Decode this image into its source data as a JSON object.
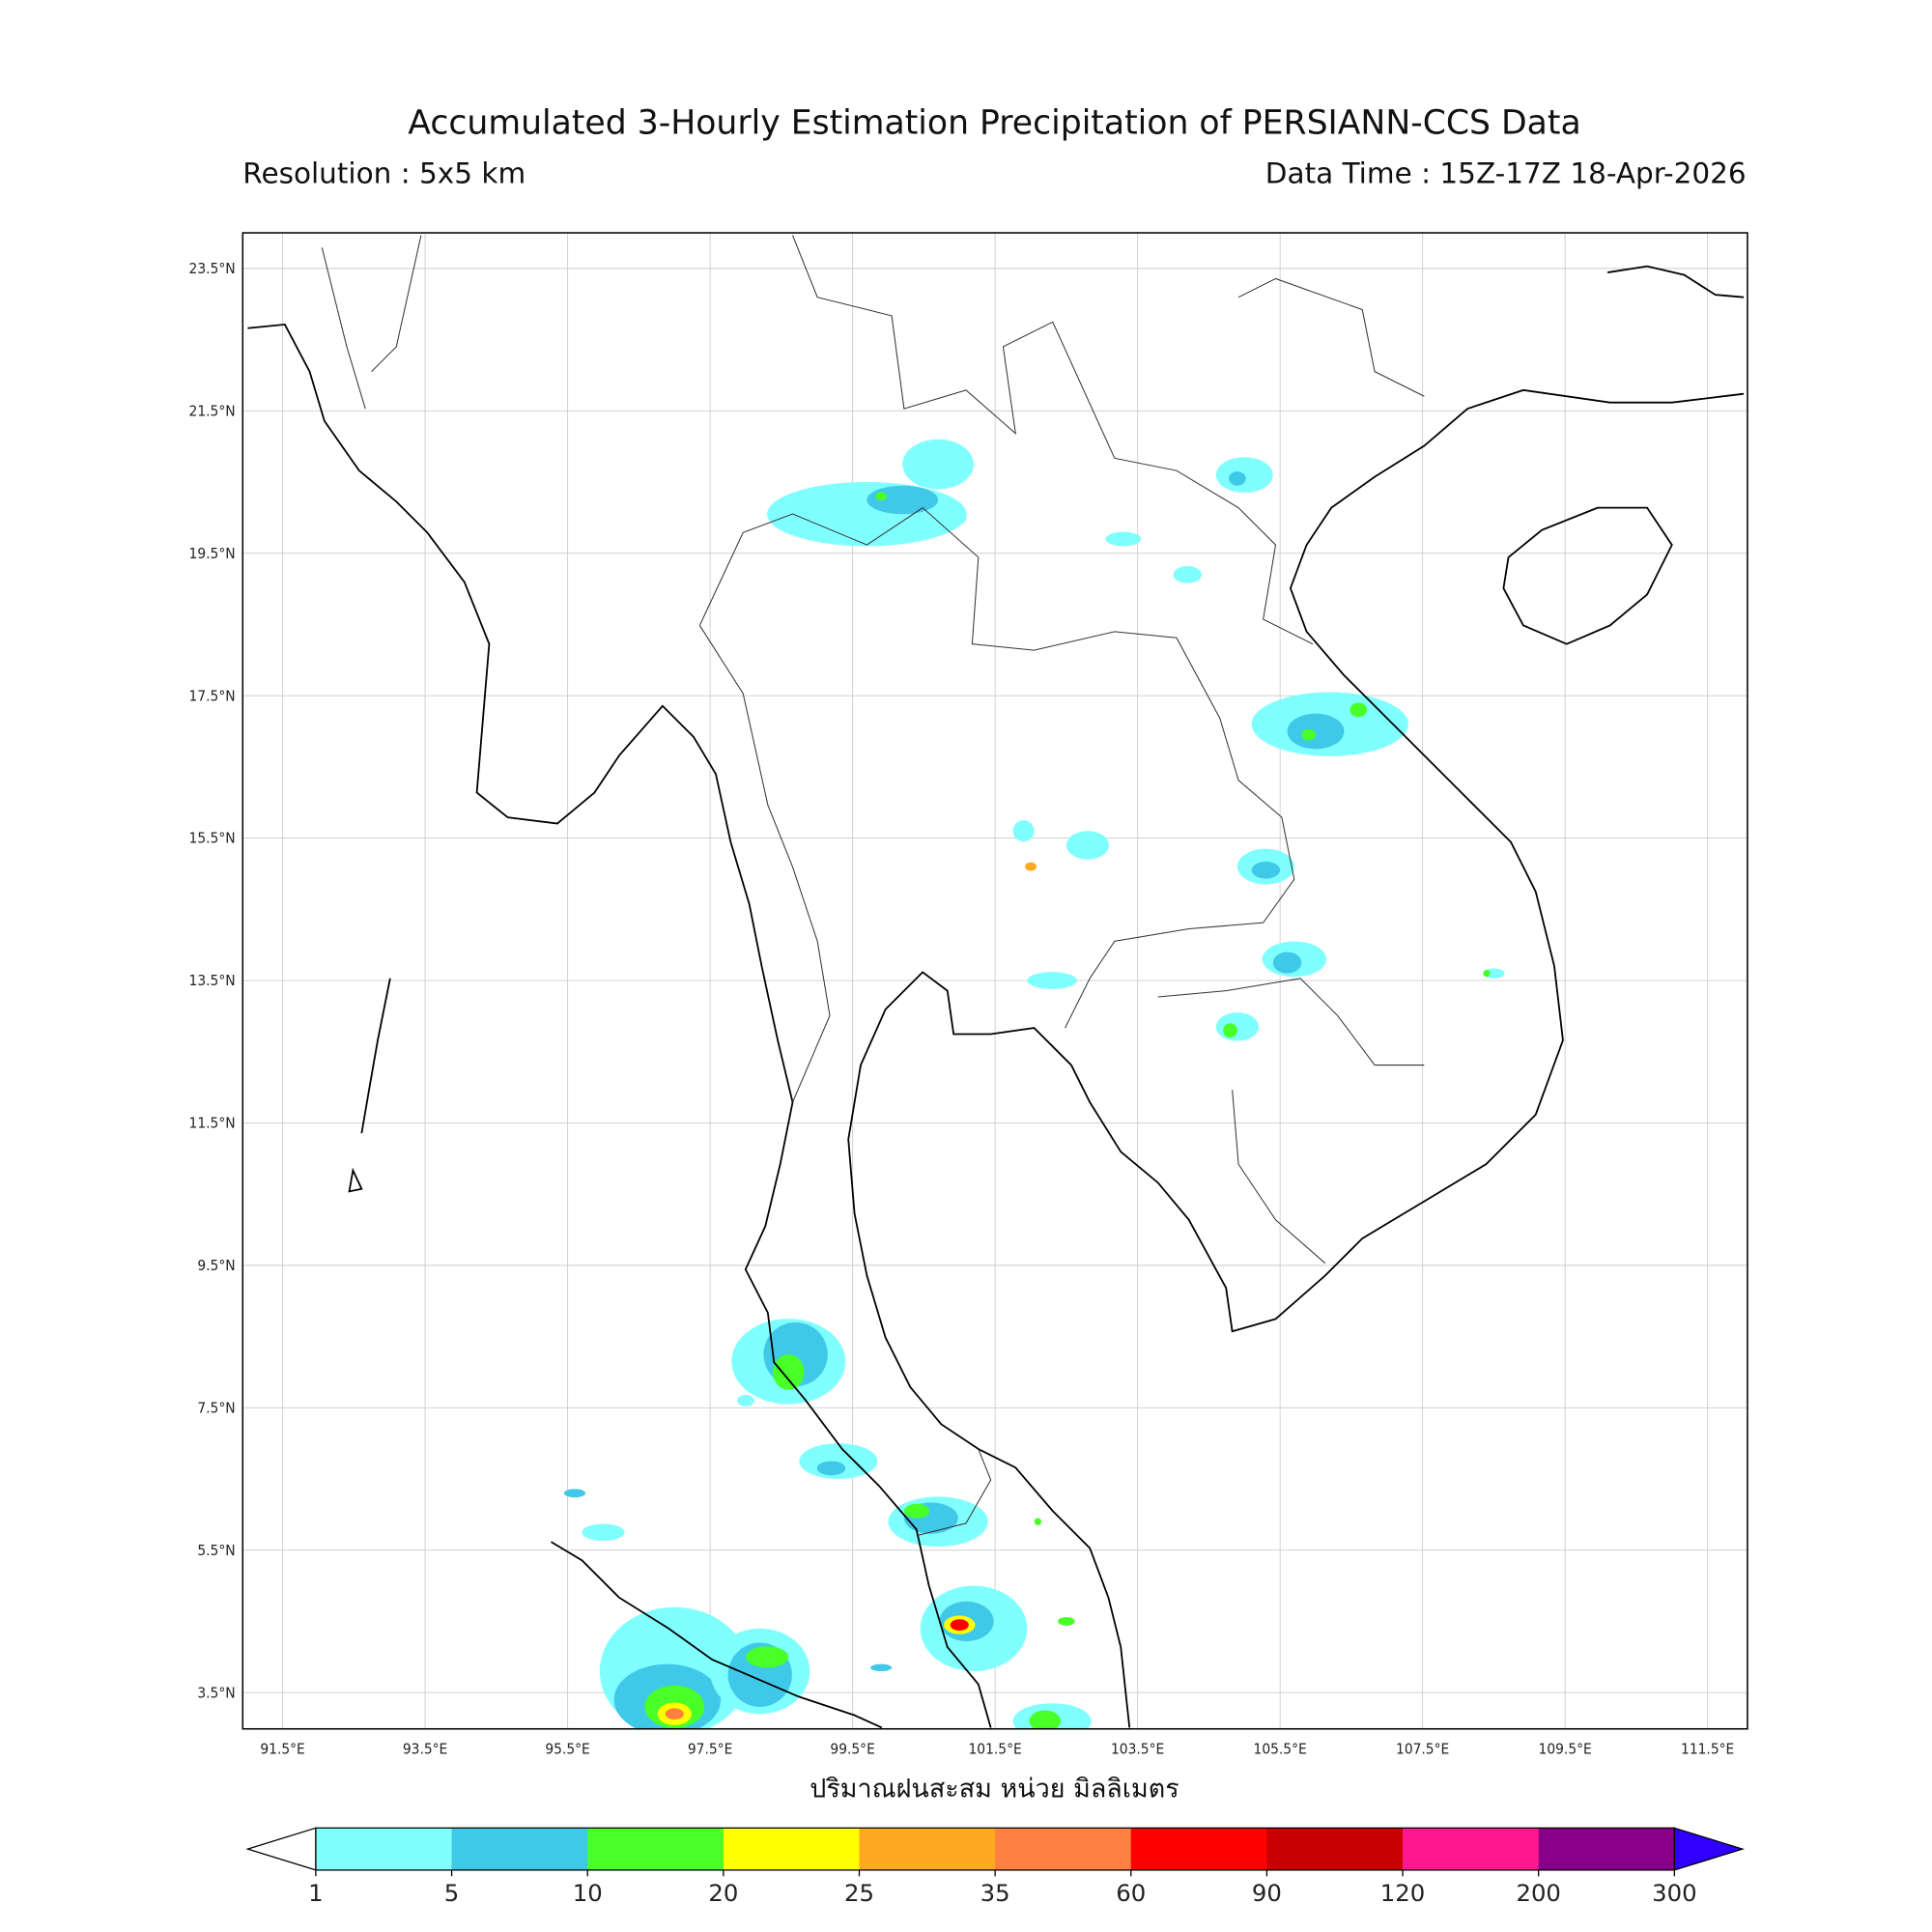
{
  "header": {
    "title": "Accumulated 3-Hourly Estimation Precipitation of PERSIANN-CCS Data",
    "resolution": "Resolution : 5x5 km",
    "data_time": "Data Time : 15Z-17Z 18-Apr-2026"
  },
  "axes": {
    "lat_ticks": [
      "23.5°N",
      "21.5°N",
      "19.5°N",
      "17.5°N",
      "15.5°N",
      "13.5°N",
      "11.5°N",
      "9.5°N",
      "7.5°N",
      "5.5°N",
      "3.5°N"
    ],
    "lat_values": [
      23.5,
      21.5,
      19.5,
      17.5,
      15.5,
      13.5,
      11.5,
      9.5,
      7.5,
      5.5,
      3.5
    ],
    "lon_ticks": [
      "91.5°E",
      "93.5°E",
      "95.5°E",
      "97.5°E",
      "99.5°E",
      "101.5°E",
      "103.5°E",
      "105.5°E",
      "107.5°E",
      "109.5°E",
      "111.5°E"
    ],
    "lon_values": [
      91.5,
      93.5,
      95.5,
      97.5,
      99.5,
      101.5,
      103.5,
      105.5,
      107.5,
      109.5,
      111.5
    ],
    "lon_range": [
      90.94,
      112.06
    ],
    "lat_range": [
      2.99,
      24.0
    ],
    "grid": true,
    "xlabel": "ปริมาณฝนสะสม หน่วย มิลลิเมตร"
  },
  "colorbar": {
    "labels": [
      "1",
      "5",
      "10",
      "20",
      "25",
      "35",
      "60",
      "90",
      "120",
      "200",
      "300"
    ],
    "colors": [
      "#80FFFF",
      "#40C8E8",
      "#48FF28",
      "#FFFF00",
      "#FFA820",
      "#FF8040",
      "#FF0000",
      "#C80000",
      "#FF1890",
      "#880088"
    ],
    "under_color": "#FFFFFF",
    "over_color": "#3000FF"
  },
  "precip_cells": [
    [
      99.7,
      20.05,
      1.4,
      0.45,
      0
    ],
    [
      100.2,
      20.25,
      0.5,
      0.2,
      1
    ],
    [
      99.9,
      20.3,
      0.08,
      0.06,
      2
    ],
    [
      100.7,
      20.75,
      0.5,
      0.35,
      0
    ],
    [
      100.9,
      20.0,
      0.2,
      0.12,
      0
    ],
    [
      105.0,
      20.6,
      0.4,
      0.25,
      0
    ],
    [
      104.9,
      20.55,
      0.12,
      0.1,
      1
    ],
    [
      103.3,
      19.7,
      0.25,
      0.1,
      0
    ],
    [
      104.2,
      19.2,
      0.2,
      0.12,
      0
    ],
    [
      106.2,
      17.1,
      1.1,
      0.45,
      0
    ],
    [
      106.0,
      17.0,
      0.4,
      0.25,
      1
    ],
    [
      105.9,
      16.95,
      0.1,
      0.08,
      2
    ],
    [
      106.6,
      17.3,
      0.12,
      0.1,
      2
    ],
    [
      105.3,
      15.1,
      0.4,
      0.25,
      0
    ],
    [
      105.3,
      15.05,
      0.2,
      0.12,
      1
    ],
    [
      105.7,
      13.8,
      0.45,
      0.25,
      0
    ],
    [
      105.6,
      13.75,
      0.2,
      0.15,
      1
    ],
    [
      104.9,
      12.85,
      0.3,
      0.2,
      0
    ],
    [
      104.8,
      12.8,
      0.1,
      0.1,
      2
    ],
    [
      102.8,
      15.4,
      0.3,
      0.2,
      0
    ],
    [
      101.9,
      15.6,
      0.15,
      0.15,
      0
    ],
    [
      102.0,
      15.1,
      0.08,
      0.06,
      4
    ],
    [
      102.3,
      13.5,
      0.35,
      0.12,
      0
    ],
    [
      108.5,
      13.6,
      0.15,
      0.07,
      0
    ],
    [
      108.4,
      13.6,
      0.05,
      0.05,
      2
    ],
    [
      98.6,
      8.15,
      0.8,
      0.6,
      0
    ],
    [
      98.7,
      8.25,
      0.45,
      0.45,
      1
    ],
    [
      98.6,
      8.0,
      0.22,
      0.25,
      2
    ],
    [
      98.0,
      7.6,
      0.12,
      0.08,
      0
    ],
    [
      99.3,
      6.75,
      0.55,
      0.25,
      0
    ],
    [
      99.2,
      6.65,
      0.2,
      0.1,
      1
    ],
    [
      100.7,
      5.9,
      0.7,
      0.35,
      0
    ],
    [
      100.6,
      5.95,
      0.38,
      0.22,
      1
    ],
    [
      100.4,
      6.05,
      0.18,
      0.1,
      2
    ],
    [
      102.1,
      5.9,
      0.05,
      0.05,
      2
    ],
    [
      101.2,
      4.4,
      0.75,
      0.6,
      0
    ],
    [
      101.1,
      4.5,
      0.38,
      0.28,
      1
    ],
    [
      101.0,
      4.45,
      0.22,
      0.13,
      3
    ],
    [
      101.0,
      4.45,
      0.13,
      0.08,
      6
    ],
    [
      102.5,
      4.5,
      0.12,
      0.06,
      2
    ],
    [
      97.0,
      3.8,
      1.05,
      0.9,
      0
    ],
    [
      96.9,
      3.4,
      0.75,
      0.5,
      1
    ],
    [
      97.0,
      3.3,
      0.42,
      0.3,
      2
    ],
    [
      97.0,
      3.2,
      0.24,
      0.16,
      3
    ],
    [
      97.0,
      3.2,
      0.13,
      0.08,
      5
    ],
    [
      98.2,
      3.8,
      0.7,
      0.6,
      0
    ],
    [
      98.2,
      3.75,
      0.45,
      0.45,
      1
    ],
    [
      98.3,
      4.0,
      0.3,
      0.15,
      2
    ],
    [
      102.3,
      3.1,
      0.55,
      0.25,
      0
    ],
    [
      102.2,
      3.1,
      0.22,
      0.15,
      2
    ],
    [
      96.0,
      5.75,
      0.3,
      0.12,
      0
    ],
    [
      95.6,
      6.3,
      0.15,
      0.06,
      1
    ],
    [
      99.9,
      3.85,
      0.15,
      0.05,
      1
    ]
  ]
}
